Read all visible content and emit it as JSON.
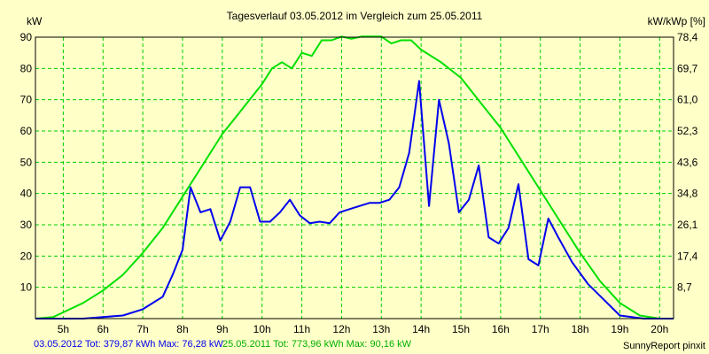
{
  "chart_data": {
    "type": "line",
    "title": "Tagesverlauf 03.05.2012 im Vergleich zum 25.05.2011",
    "ylabel_left": "kW",
    "ylabel_right": "kW/kWp [%]",
    "xlabel": "",
    "grid": true,
    "ylim": [
      0,
      90
    ],
    "xlim": [
      4.3,
      20.35
    ],
    "y_ticks_left": [
      "90",
      "80",
      "70",
      "60",
      "50",
      "40",
      "30",
      "20",
      "10"
    ],
    "y_ticks_right": [
      "78,4",
      "69,7",
      "61,0",
      "52,3",
      "43,6",
      "34,8",
      "26,1",
      "17,4",
      "8,7"
    ],
    "x_ticks": [
      "5h",
      "6h",
      "7h",
      "8h",
      "9h",
      "10h",
      "11h",
      "12h",
      "13h",
      "14h",
      "15h",
      "16h",
      "17h",
      "18h",
      "19h",
      "20h"
    ],
    "series": [
      {
        "name": "25.05.2011",
        "color": "#00e000",
        "points": [
          [
            4.3,
            0
          ],
          [
            4.75,
            0.5
          ],
          [
            5.0,
            2
          ],
          [
            5.5,
            5
          ],
          [
            6.0,
            9
          ],
          [
            6.5,
            14
          ],
          [
            7.0,
            21
          ],
          [
            7.5,
            29
          ],
          [
            8.0,
            39
          ],
          [
            8.5,
            49
          ],
          [
            9.0,
            59
          ],
          [
            9.5,
            67
          ],
          [
            9.75,
            71
          ],
          [
            10.0,
            75
          ],
          [
            10.25,
            80
          ],
          [
            10.5,
            82
          ],
          [
            10.75,
            80
          ],
          [
            11.0,
            85
          ],
          [
            11.25,
            84
          ],
          [
            11.5,
            89
          ],
          [
            11.75,
            89
          ],
          [
            12.0,
            90.2
          ],
          [
            12.25,
            89.5
          ],
          [
            12.5,
            90.2
          ],
          [
            12.75,
            90.2
          ],
          [
            13.0,
            90.2
          ],
          [
            13.25,
            88
          ],
          [
            13.5,
            89
          ],
          [
            13.75,
            89
          ],
          [
            14.0,
            86
          ],
          [
            14.5,
            82
          ],
          [
            15.0,
            77
          ],
          [
            15.5,
            69
          ],
          [
            16.0,
            61
          ],
          [
            16.5,
            51
          ],
          [
            17.0,
            41
          ],
          [
            17.5,
            31
          ],
          [
            18.0,
            21
          ],
          [
            18.5,
            12
          ],
          [
            19.0,
            5
          ],
          [
            19.5,
            1
          ],
          [
            20.0,
            0
          ],
          [
            20.35,
            0
          ]
        ]
      },
      {
        "name": "03.05.2012",
        "color": "#0000ee",
        "points": [
          [
            4.3,
            0
          ],
          [
            5.0,
            0
          ],
          [
            5.5,
            0
          ],
          [
            6.0,
            0.5
          ],
          [
            6.5,
            1
          ],
          [
            7.0,
            3
          ],
          [
            7.5,
            7
          ],
          [
            7.75,
            14
          ],
          [
            8.0,
            22
          ],
          [
            8.2,
            42
          ],
          [
            8.45,
            34
          ],
          [
            8.7,
            35
          ],
          [
            8.95,
            25
          ],
          [
            9.2,
            31
          ],
          [
            9.45,
            42
          ],
          [
            9.7,
            42
          ],
          [
            9.95,
            31
          ],
          [
            10.2,
            31
          ],
          [
            10.45,
            34
          ],
          [
            10.7,
            38
          ],
          [
            10.95,
            33
          ],
          [
            11.2,
            30.5
          ],
          [
            11.45,
            31
          ],
          [
            11.7,
            30.5
          ],
          [
            11.95,
            34
          ],
          [
            12.2,
            35
          ],
          [
            12.45,
            36
          ],
          [
            12.7,
            37
          ],
          [
            12.95,
            37
          ],
          [
            13.2,
            38
          ],
          [
            13.45,
            42
          ],
          [
            13.7,
            53
          ],
          [
            13.95,
            76
          ],
          [
            14.2,
            36
          ],
          [
            14.45,
            70
          ],
          [
            14.7,
            56
          ],
          [
            14.95,
            34
          ],
          [
            15.2,
            38
          ],
          [
            15.45,
            49
          ],
          [
            15.7,
            26
          ],
          [
            15.95,
            24
          ],
          [
            16.2,
            29
          ],
          [
            16.45,
            43
          ],
          [
            16.7,
            19
          ],
          [
            16.95,
            17
          ],
          [
            17.2,
            32
          ],
          [
            17.45,
            26
          ],
          [
            17.8,
            18
          ],
          [
            18.2,
            11
          ],
          [
            18.6,
            6
          ],
          [
            19.0,
            1
          ],
          [
            19.3,
            0.5
          ],
          [
            19.6,
            0
          ],
          [
            20.35,
            0
          ]
        ]
      }
    ]
  },
  "footer": {
    "part1": "03.05.2012 Tot: 379,87 kWh Max: 76,28 kW",
    "part2": "25.05.2011 Tot: 773,96 kWh Max: 90,16 kW",
    "brand": "SunnyReport pinxit"
  }
}
